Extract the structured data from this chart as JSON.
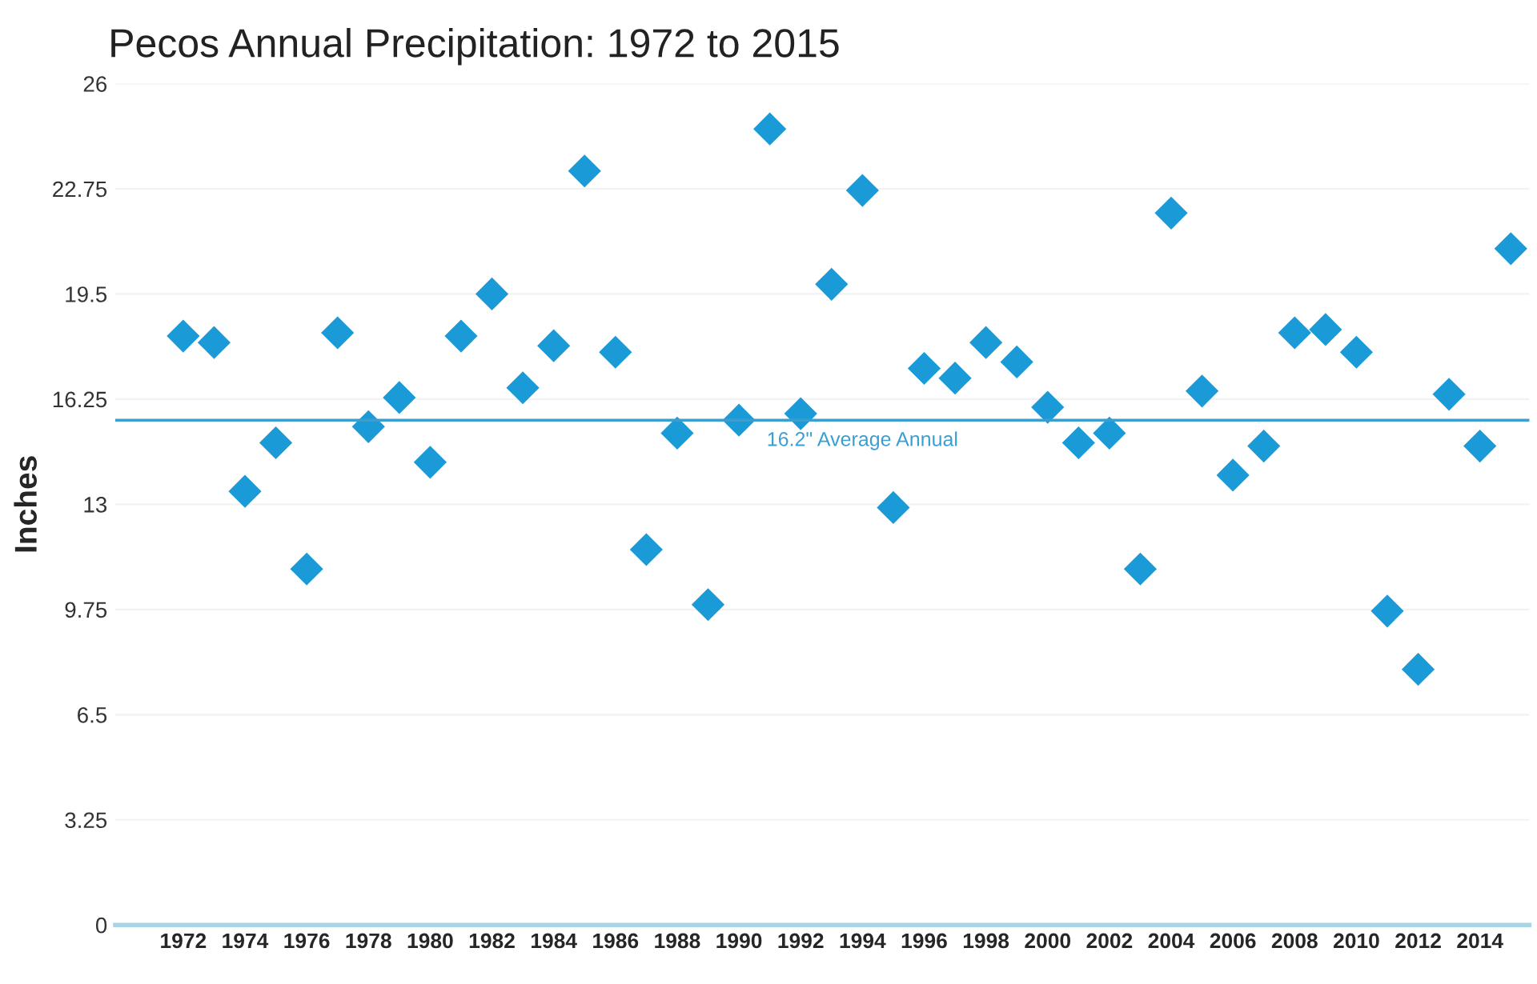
{
  "chart_data": {
    "type": "scatter",
    "title": "Pecos Annual Precipitation: 1972 to 2015",
    "ylabel": "Inches",
    "categories": [
      "1972",
      null,
      "1974",
      null,
      "1976",
      null,
      "1978",
      null,
      "1980",
      null,
      "1982",
      null,
      "1984",
      null,
      "1986",
      null,
      "1988",
      null,
      "1990",
      null,
      "1992",
      null,
      "1994",
      null,
      "1996",
      null,
      "1998",
      null,
      "2000",
      null,
      "2002",
      null,
      "2004",
      null,
      "2006",
      null,
      "2008",
      null,
      "2010",
      null,
      "2012",
      null,
      "2014",
      null
    ],
    "series": [
      {
        "color": "#1a9bd7",
        "values": [
          18.2,
          18.0,
          13.4,
          14.9,
          11.0,
          18.3,
          15.4,
          16.3,
          14.3,
          18.2,
          19.5,
          16.6,
          17.9,
          23.3,
          17.7,
          11.6,
          15.2,
          9.9,
          15.6,
          24.6,
          15.8,
          19.8,
          22.7,
          12.9,
          17.2,
          16.9,
          18.0,
          17.4,
          16.0,
          14.9,
          15.2,
          11.0,
          22.0,
          16.5,
          13.9,
          14.8,
          18.3,
          18.4,
          17.7,
          9.7,
          7.9,
          16.4,
          14.8,
          20.9
        ]
      }
    ],
    "marker": "diamond",
    "ylim": [
      0,
      26
    ],
    "yticks": [
      0,
      3.25,
      6.5,
      9.75,
      13,
      16.25,
      19.5,
      22.75,
      26
    ],
    "ref_lines": [
      {
        "axis": "y",
        "value": 15.6,
        "label": "16.2\" Average Annual",
        "color": "#3a9fd0"
      }
    ],
    "grid": "y",
    "legend": false
  }
}
